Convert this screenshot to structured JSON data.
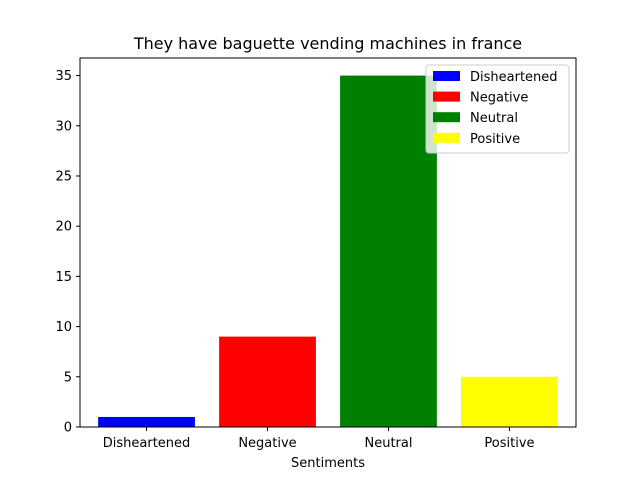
{
  "chart_data": {
    "type": "bar",
    "title": "They have baguette vending machines in france",
    "xlabel": "Sentiments",
    "ylabel": "",
    "categories": [
      "Disheartened",
      "Negative",
      "Neutral",
      "Positive"
    ],
    "values": [
      1,
      9,
      35,
      5
    ],
    "colors": [
      "#0000ff",
      "#ff0000",
      "#008000",
      "#ffff00"
    ],
    "ylim": [
      0,
      36.75
    ],
    "yticks": [
      0,
      5,
      10,
      15,
      20,
      25,
      30,
      35
    ],
    "grid": false,
    "legend": {
      "position": "top-right",
      "entries": [
        "Disheartened",
        "Negative",
        "Neutral",
        "Positive"
      ]
    }
  }
}
